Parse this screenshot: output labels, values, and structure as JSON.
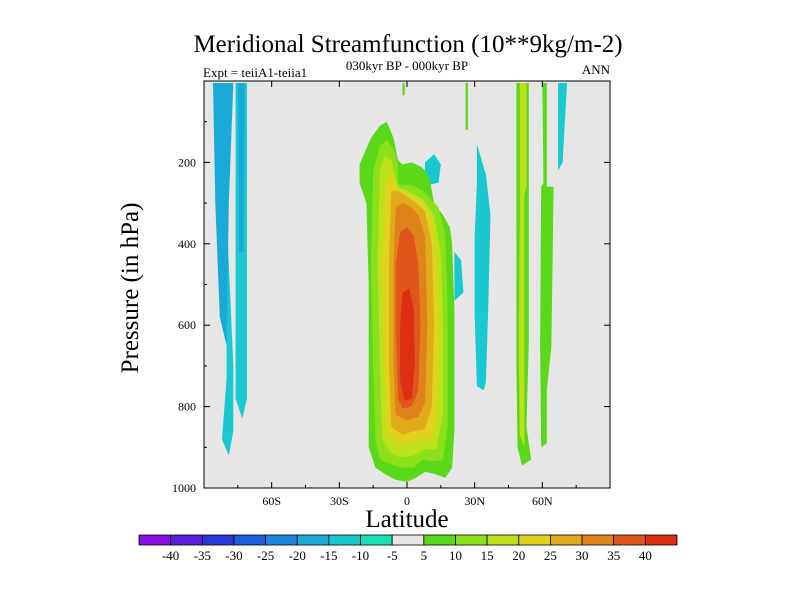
{
  "chart_data": {
    "type": "heatmap",
    "title": "Meridional Streamfunction (10**9kg/m-2)",
    "subtitle": "030kyr BP - 000kyr BP",
    "left_label": "Expt = teiiA1-teiia1",
    "right_label": "ANN",
    "xlabel": "Latitude",
    "ylabel": "Pressure (in hPa)",
    "xlim": [
      -90,
      90
    ],
    "ylim": [
      1000,
      0
    ],
    "x_ticks": [
      {
        "value": -60,
        "label": "60S"
      },
      {
        "value": -30,
        "label": "30S"
      },
      {
        "value": 0,
        "label": "0"
      },
      {
        "value": 30,
        "label": "30N"
      },
      {
        "value": 60,
        "label": "60N"
      }
    ],
    "y_ticks": [
      {
        "value": 200,
        "label": "200"
      },
      {
        "value": 400,
        "label": "400"
      },
      {
        "value": 600,
        "label": "600"
      },
      {
        "value": 800,
        "label": "800"
      },
      {
        "value": 1000,
        "label": "1000"
      }
    ],
    "background_color": "#e6e6e6",
    "colorbar": {
      "levels": [
        "-40",
        "-35",
        "-30",
        "-25",
        "-20",
        "-15",
        "-10",
        "-5",
        "5",
        "10",
        "15",
        "20",
        "25",
        "30",
        "35",
        "40"
      ],
      "colors": [
        "#8a0ee6",
        "#5a1edc",
        "#2838d8",
        "#1c5ee0",
        "#1a86e0",
        "#1aaad8",
        "#1ac8d0",
        "#1ae0b8",
        "#e6e6e6",
        "#5ad81a",
        "#8ce01a",
        "#bee01a",
        "#e0d21a",
        "#e0aa1a",
        "#e0821a",
        "#e0561a",
        "#dc2e10"
      ]
    },
    "regions": [
      {
        "name": "neg-south-outer",
        "class": -10,
        "points": [
          [
            -89,
            5
          ],
          [
            -80,
            5
          ],
          [
            -80,
            730
          ],
          [
            -82,
            880
          ],
          [
            -79,
            920
          ],
          [
            -77,
            860
          ],
          [
            -77,
            700
          ],
          [
            -81,
            200
          ],
          [
            -81,
            5
          ]
        ]
      },
      {
        "name": "neg-south-mid",
        "class": -15,
        "points": [
          [
            -86,
            5
          ],
          [
            -77,
            5
          ],
          [
            -79,
            300
          ],
          [
            -80,
            650
          ],
          [
            -83,
            580
          ],
          [
            -85,
            300
          ]
        ]
      },
      {
        "name": "neg-south-b",
        "class": -10,
        "points": [
          [
            -76,
            5
          ],
          [
            -71,
            5
          ],
          [
            -71,
            780
          ],
          [
            -73,
            830
          ],
          [
            -76,
            780
          ]
        ]
      },
      {
        "name": "neg-south-b-in",
        "class": -15,
        "points": [
          [
            -75,
            5
          ],
          [
            -72,
            5
          ],
          [
            -72.5,
            420
          ],
          [
            -74.5,
            420
          ]
        ]
      },
      {
        "name": "pos-band-cap",
        "class": 5,
        "points": [
          [
            -2,
            5
          ],
          [
            -1,
            5
          ],
          [
            -1,
            35
          ],
          [
            -2,
            35
          ]
        ]
      },
      {
        "name": "pos-band-a",
        "class": 5,
        "points": [
          [
            26,
            5
          ],
          [
            27,
            5
          ],
          [
            27,
            120
          ],
          [
            26,
            120
          ]
        ]
      },
      {
        "name": "pos-band-b",
        "class": 5,
        "points": [
          [
            48.5,
            5
          ],
          [
            54,
            5
          ],
          [
            54,
            640
          ],
          [
            53,
            850
          ],
          [
            55,
            930
          ],
          [
            51,
            945
          ],
          [
            49,
            900
          ],
          [
            48.5,
            700
          ]
        ]
      },
      {
        "name": "pos-band-b-in",
        "class": 15,
        "points": [
          [
            50,
            5
          ],
          [
            53,
            5
          ],
          [
            53,
            260
          ],
          [
            52,
            280
          ],
          [
            52,
            900
          ],
          [
            50,
            870
          ],
          [
            49.5,
            650
          ],
          [
            50,
            350
          ]
        ]
      },
      {
        "name": "pos-band-c",
        "class": 5,
        "points": [
          [
            60,
            5
          ],
          [
            62,
            5
          ],
          [
            62,
            260
          ],
          [
            65,
            260
          ],
          [
            64,
            650
          ],
          [
            62,
            760
          ],
          [
            62,
            890
          ],
          [
            59.5,
            900
          ],
          [
            59,
            650
          ],
          [
            59.5,
            260
          ],
          [
            60.5,
            250
          ]
        ]
      },
      {
        "name": "neg-band-c-top",
        "class": -10,
        "points": [
          [
            67,
            5
          ],
          [
            71,
            5
          ],
          [
            69,
            200
          ],
          [
            67,
            220
          ]
        ]
      },
      {
        "name": "neg-band-a",
        "class": -10,
        "points": [
          [
            31,
            155
          ],
          [
            35,
            230
          ],
          [
            37,
            330
          ],
          [
            36,
            560
          ],
          [
            35,
            740
          ],
          [
            34,
            760
          ],
          [
            31,
            750
          ],
          [
            30,
            580
          ],
          [
            30,
            380
          ],
          [
            31,
            250
          ]
        ]
      },
      {
        "name": "neg-band-a2",
        "class": -10,
        "points": [
          [
            21,
            420
          ],
          [
            24,
            440
          ],
          [
            25,
            520
          ],
          [
            21,
            540
          ]
        ]
      },
      {
        "name": "neg-small",
        "class": -10,
        "points": [
          [
            8,
            200
          ],
          [
            12,
            180
          ],
          [
            15,
            205
          ],
          [
            14,
            250
          ],
          [
            10,
            255
          ],
          [
            8,
            230
          ]
        ]
      },
      {
        "name": "main-5",
        "class": 5,
        "points": [
          [
            -21,
            205
          ],
          [
            -16,
            140
          ],
          [
            -12,
            110
          ],
          [
            -9,
            100
          ],
          [
            -6,
            140
          ],
          [
            -4,
            195
          ],
          [
            -2,
            205
          ],
          [
            2,
            200
          ],
          [
            4,
            205
          ],
          [
            6,
            210
          ],
          [
            8,
            220
          ],
          [
            10,
            240
          ],
          [
            12,
            300
          ],
          [
            16,
            330
          ],
          [
            19,
            360
          ],
          [
            20,
            400
          ],
          [
            21,
            560
          ],
          [
            21,
            860
          ],
          [
            20,
            950
          ],
          [
            17,
            975
          ],
          [
            12,
            965
          ],
          [
            8,
            960
          ],
          [
            4,
            975
          ],
          [
            0,
            985
          ],
          [
            -5,
            980
          ],
          [
            -10,
            965
          ],
          [
            -14,
            950
          ],
          [
            -17,
            900
          ],
          [
            -17,
            750
          ],
          [
            -17,
            500
          ],
          [
            -18,
            300
          ],
          [
            -21,
            250
          ]
        ]
      },
      {
        "name": "main-10",
        "class": 10,
        "points": [
          [
            -15,
            220
          ],
          [
            -12,
            160
          ],
          [
            -9,
            145
          ],
          [
            -6,
            165
          ],
          [
            -4,
            205
          ],
          [
            -4,
            255
          ],
          [
            2,
            255
          ],
          [
            7,
            270
          ],
          [
            14,
            310
          ],
          [
            17,
            380
          ],
          [
            18,
            550
          ],
          [
            18,
            850
          ],
          [
            16,
            930
          ],
          [
            12,
            935
          ],
          [
            7,
            930
          ],
          [
            3,
            950
          ],
          [
            -3,
            950
          ],
          [
            -8,
            940
          ],
          [
            -12,
            930
          ],
          [
            -14,
            880
          ],
          [
            -15,
            700
          ],
          [
            -16,
            450
          ]
        ]
      },
      {
        "name": "main-15",
        "class": 15,
        "points": [
          [
            -12,
            220
          ],
          [
            -10,
            185
          ],
          [
            -7,
            195
          ],
          [
            -4,
            260
          ],
          [
            2,
            275
          ],
          [
            7,
            290
          ],
          [
            12,
            330
          ],
          [
            15,
            420
          ],
          [
            16,
            600
          ],
          [
            16,
            820
          ],
          [
            13,
            905
          ],
          [
            8,
            905
          ],
          [
            3,
            920
          ],
          [
            -3,
            925
          ],
          [
            -7,
            915
          ],
          [
            -11,
            880
          ],
          [
            -12,
            700
          ],
          [
            -13,
            450
          ]
        ]
      },
      {
        "name": "main-20",
        "class": 20,
        "points": [
          [
            -9,
            240
          ],
          [
            -6,
            235
          ],
          [
            -4,
            265
          ],
          [
            2,
            285
          ],
          [
            7,
            300
          ],
          [
            11,
            340
          ],
          [
            13,
            450
          ],
          [
            14,
            650
          ],
          [
            13,
            850
          ],
          [
            10,
            880
          ],
          [
            5,
            880
          ],
          [
            0,
            895
          ],
          [
            -5,
            890
          ],
          [
            -9,
            860
          ],
          [
            -10,
            700
          ],
          [
            -11,
            450
          ]
        ]
      },
      {
        "name": "main-25",
        "class": 25,
        "points": [
          [
            -7,
            270
          ],
          [
            -4,
            270
          ],
          [
            -1,
            280
          ],
          [
            4,
            300
          ],
          [
            8,
            320
          ],
          [
            11,
            400
          ],
          [
            12,
            600
          ],
          [
            11,
            800
          ],
          [
            8,
            855
          ],
          [
            3,
            860
          ],
          [
            -2,
            870
          ],
          [
            -7,
            850
          ],
          [
            -8,
            700
          ],
          [
            -8,
            450
          ]
        ]
      },
      {
        "name": "main-30",
        "class": 30,
        "points": [
          [
            -5,
            310
          ],
          [
            -2,
            300
          ],
          [
            2,
            310
          ],
          [
            5,
            330
          ],
          [
            8,
            380
          ],
          [
            9,
            600
          ],
          [
            8,
            790
          ],
          [
            5,
            825
          ],
          [
            0,
            835
          ],
          [
            -5,
            820
          ],
          [
            -6,
            700
          ],
          [
            -6,
            450
          ]
        ]
      },
      {
        "name": "main-35",
        "class": 35,
        "points": [
          [
            -3,
            370
          ],
          [
            0,
            360
          ],
          [
            3,
            380
          ],
          [
            5,
            450
          ],
          [
            6,
            600
          ],
          [
            5,
            760
          ],
          [
            2,
            800
          ],
          [
            -2,
            805
          ],
          [
            -4,
            780
          ],
          [
            -5,
            600
          ],
          [
            -5,
            450
          ]
        ]
      },
      {
        "name": "main-40",
        "class": 40,
        "points": [
          [
            -2,
            520
          ],
          [
            1,
            510
          ],
          [
            3,
            560
          ],
          [
            3.5,
            700
          ],
          [
            2,
            780
          ],
          [
            -1,
            785
          ],
          [
            -3,
            740
          ],
          [
            -3,
            600
          ]
        ]
      }
    ]
  }
}
